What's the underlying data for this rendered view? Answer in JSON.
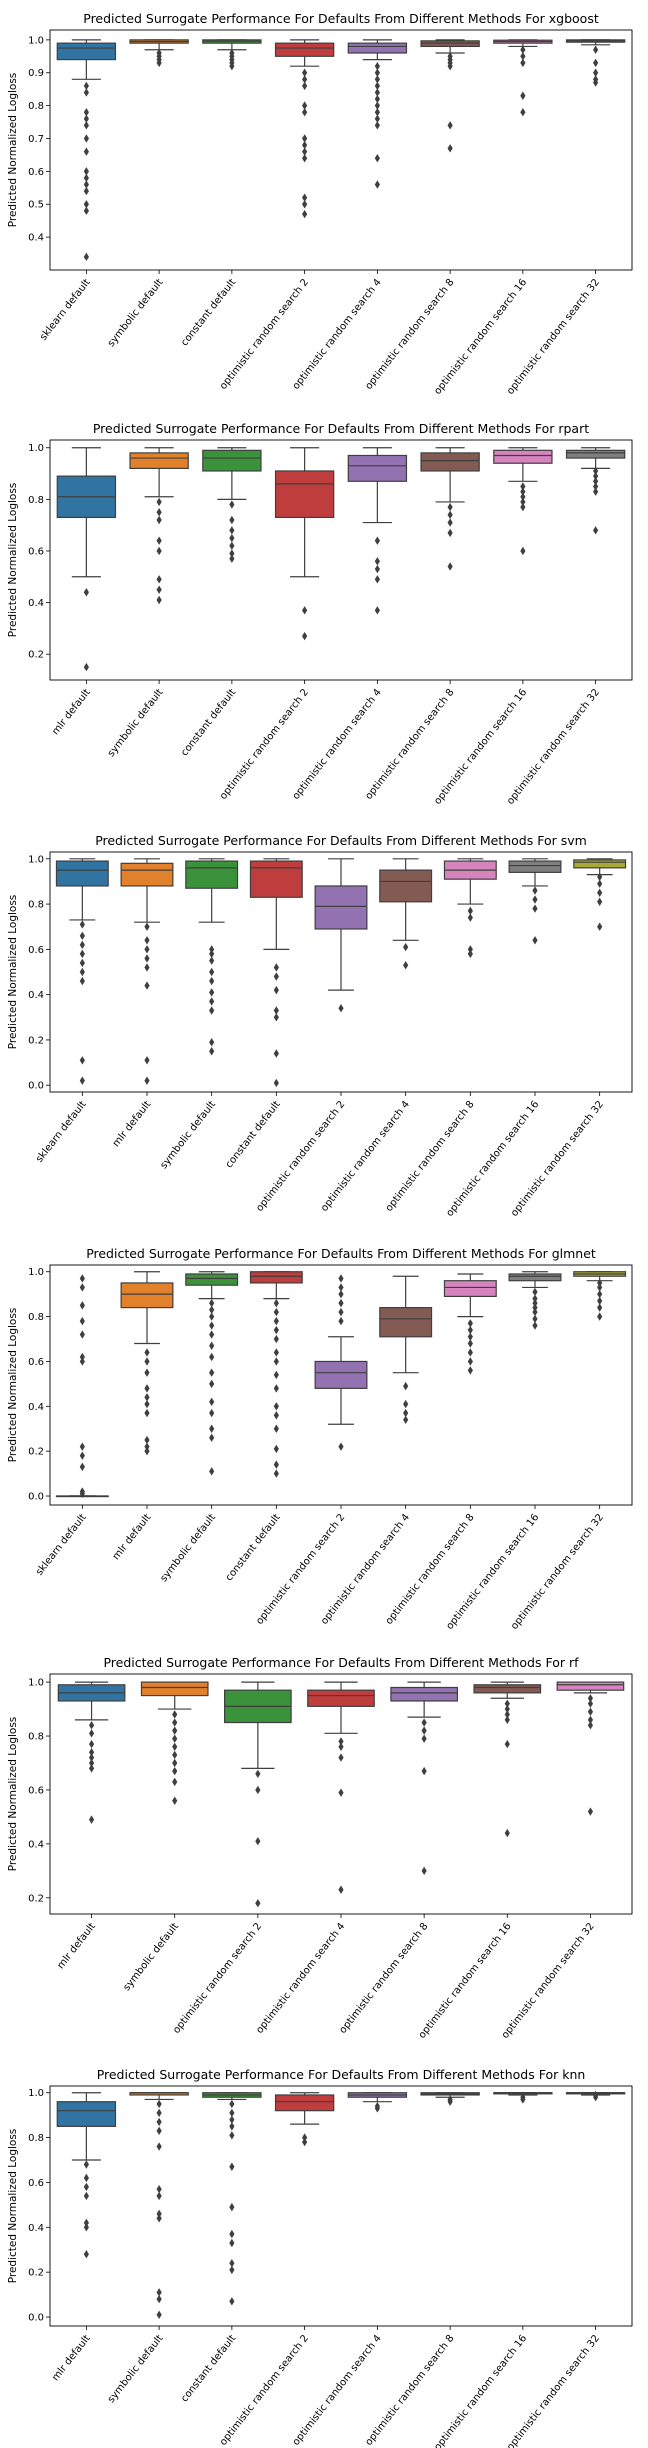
{
  "chart_data": [
    {
      "type": "box",
      "title": "Predicted Surrogate Performance For Defaults From Different Methods For xgboost",
      "ylabel": "Predicted Normalized Logloss",
      "xlabel": "",
      "ylim": [
        0.3,
        1.03
      ],
      "yticks": [
        "0.4",
        "0.5",
        "0.6",
        "0.7",
        "0.8",
        "0.9",
        "1.0"
      ],
      "grid": false,
      "categories": [
        "sklearn default",
        "symbolic default",
        "constant default",
        "optimistic random search 2",
        "optimistic random search 4",
        "optimistic random search 8",
        "optimistic random search 16",
        "optimistic random search 32"
      ],
      "boxes": [
        {
          "whislo": 0.88,
          "q1": 0.94,
          "med": 0.975,
          "q3": 0.99,
          "whishi": 1.0,
          "fliers": [
            0.86,
            0.84,
            0.78,
            0.76,
            0.74,
            0.7,
            0.66,
            0.6,
            0.58,
            0.56,
            0.54,
            0.5,
            0.48,
            0.34
          ]
        },
        {
          "whislo": 0.97,
          "q1": 0.99,
          "med": 0.995,
          "q3": 1.0,
          "whishi": 1.0,
          "fliers": [
            0.96,
            0.95,
            0.94,
            0.93
          ]
        },
        {
          "whislo": 0.97,
          "q1": 0.99,
          "med": 0.996,
          "q3": 1.0,
          "whishi": 1.0,
          "fliers": [
            0.96,
            0.95,
            0.94,
            0.93,
            0.92
          ]
        },
        {
          "whislo": 0.92,
          "q1": 0.95,
          "med": 0.975,
          "q3": 0.99,
          "whishi": 1.0,
          "fliers": [
            0.9,
            0.88,
            0.86,
            0.8,
            0.78,
            0.7,
            0.68,
            0.66,
            0.64,
            0.52,
            0.5,
            0.47
          ]
        },
        {
          "whislo": 0.94,
          "q1": 0.96,
          "med": 0.98,
          "q3": 0.99,
          "whishi": 1.0,
          "fliers": [
            0.92,
            0.9,
            0.88,
            0.86,
            0.84,
            0.82,
            0.8,
            0.78,
            0.76,
            0.74,
            0.64,
            0.56
          ]
        },
        {
          "whislo": 0.96,
          "q1": 0.98,
          "med": 0.99,
          "q3": 0.997,
          "whishi": 1.0,
          "fliers": [
            0.95,
            0.94,
            0.93,
            0.92,
            0.74,
            0.67
          ]
        },
        {
          "whislo": 0.98,
          "q1": 0.99,
          "med": 0.995,
          "q3": 0.999,
          "whishi": 1.0,
          "fliers": [
            0.97,
            0.95,
            0.93,
            0.83,
            0.78
          ]
        },
        {
          "whislo": 0.985,
          "q1": 0.993,
          "med": 0.997,
          "q3": 1.0,
          "whishi": 1.0,
          "fliers": [
            0.97,
            0.93,
            0.9,
            0.88,
            0.87
          ]
        }
      ]
    },
    {
      "type": "box",
      "title": "Predicted Surrogate Performance For Defaults From Different Methods For rpart",
      "ylabel": "Predicted Normalized Logloss",
      "xlabel": "",
      "ylim": [
        0.1,
        1.03
      ],
      "yticks": [
        "0.2",
        "0.4",
        "0.6",
        "0.8",
        "1.0"
      ],
      "grid": false,
      "categories": [
        "mlr default",
        "symbolic default",
        "constant default",
        "optimistic random search 2",
        "optimistic random search 4",
        "optimistic random search 8",
        "optimistic random search 16",
        "optimistic random search 32"
      ],
      "boxes": [
        {
          "whislo": 0.5,
          "q1": 0.73,
          "med": 0.81,
          "q3": 0.89,
          "whishi": 1.0,
          "fliers": [
            0.44,
            0.15
          ]
        },
        {
          "whislo": 0.81,
          "q1": 0.92,
          "med": 0.96,
          "q3": 0.98,
          "whishi": 1.0,
          "fliers": [
            0.79,
            0.75,
            0.72,
            0.64,
            0.6,
            0.49,
            0.45,
            0.41
          ]
        },
        {
          "whislo": 0.8,
          "q1": 0.91,
          "med": 0.96,
          "q3": 0.99,
          "whishi": 1.0,
          "fliers": [
            0.78,
            0.72,
            0.68,
            0.65,
            0.62,
            0.59,
            0.57
          ]
        },
        {
          "whislo": 0.5,
          "q1": 0.73,
          "med": 0.86,
          "q3": 0.91,
          "whishi": 1.0,
          "fliers": [
            0.37,
            0.27
          ]
        },
        {
          "whislo": 0.71,
          "q1": 0.87,
          "med": 0.93,
          "q3": 0.97,
          "whishi": 1.0,
          "fliers": [
            0.64,
            0.56,
            0.53,
            0.49,
            0.37
          ]
        },
        {
          "whislo": 0.79,
          "q1": 0.91,
          "med": 0.95,
          "q3": 0.98,
          "whishi": 1.0,
          "fliers": [
            0.77,
            0.74,
            0.71,
            0.67,
            0.54
          ]
        },
        {
          "whislo": 0.87,
          "q1": 0.94,
          "med": 0.97,
          "q3": 0.99,
          "whishi": 1.0,
          "fliers": [
            0.85,
            0.83,
            0.81,
            0.79,
            0.77,
            0.6
          ]
        },
        {
          "whislo": 0.92,
          "q1": 0.96,
          "med": 0.98,
          "q3": 0.99,
          "whishi": 1.0,
          "fliers": [
            0.91,
            0.89,
            0.87,
            0.85,
            0.83,
            0.68
          ]
        }
      ]
    },
    {
      "type": "box",
      "title": "Predicted Surrogate Performance For Defaults From Different Methods For svm",
      "ylabel": "Predicted Normalized Logloss",
      "xlabel": "",
      "ylim": [
        -0.03,
        1.03
      ],
      "yticks": [
        "0.0",
        "0.2",
        "0.4",
        "0.6",
        "0.8",
        "1.0"
      ],
      "grid": false,
      "categories": [
        "sklearn default",
        "mlr default",
        "symbolic default",
        "constant default",
        "optimistic random search 2",
        "optimistic random search 4",
        "optimistic random search 8",
        "optimistic random search 16",
        "optimistic random search 32"
      ],
      "boxes": [
        {
          "whislo": 0.73,
          "q1": 0.88,
          "med": 0.95,
          "q3": 0.99,
          "whishi": 1.0,
          "fliers": [
            0.71,
            0.66,
            0.62,
            0.58,
            0.54,
            0.5,
            0.46,
            0.11,
            0.02
          ]
        },
        {
          "whislo": 0.72,
          "q1": 0.88,
          "med": 0.95,
          "q3": 0.98,
          "whishi": 1.0,
          "fliers": [
            0.7,
            0.64,
            0.6,
            0.56,
            0.52,
            0.44,
            0.11,
            0.02
          ]
        },
        {
          "whislo": 0.72,
          "q1": 0.87,
          "med": 0.96,
          "q3": 0.99,
          "whishi": 1.0,
          "fliers": [
            0.6,
            0.58,
            0.55,
            0.5,
            0.46,
            0.41,
            0.37,
            0.33,
            0.19,
            0.15
          ]
        },
        {
          "whislo": 0.6,
          "q1": 0.83,
          "med": 0.96,
          "q3": 0.99,
          "whishi": 1.0,
          "fliers": [
            0.52,
            0.48,
            0.42,
            0.33,
            0.3,
            0.14,
            0.01
          ]
        },
        {
          "whislo": 0.42,
          "q1": 0.69,
          "med": 0.79,
          "q3": 0.88,
          "whishi": 1.0,
          "fliers": [
            0.34
          ]
        },
        {
          "whislo": 0.64,
          "q1": 0.81,
          "med": 0.9,
          "q3": 0.95,
          "whishi": 1.0,
          "fliers": [
            0.61,
            0.53
          ]
        },
        {
          "whislo": 0.8,
          "q1": 0.91,
          "med": 0.95,
          "q3": 0.99,
          "whishi": 1.0,
          "fliers": [
            0.77,
            0.74,
            0.6,
            0.58
          ]
        },
        {
          "whislo": 0.88,
          "q1": 0.94,
          "med": 0.97,
          "q3": 0.99,
          "whishi": 1.0,
          "fliers": [
            0.86,
            0.82,
            0.78,
            0.64
          ]
        },
        {
          "whislo": 0.93,
          "q1": 0.96,
          "med": 0.985,
          "q3": 0.995,
          "whishi": 1.0,
          "fliers": [
            0.92,
            0.89,
            0.85,
            0.81,
            0.7
          ]
        }
      ]
    },
    {
      "type": "box",
      "title": "Predicted Surrogate Performance For Defaults From Different Methods For glmnet",
      "ylabel": "Predicted Normalized Logloss",
      "xlabel": "",
      "ylim": [
        -0.04,
        1.03
      ],
      "yticks": [
        "0.0",
        "0.2",
        "0.4",
        "0.6",
        "0.8",
        "1.0"
      ],
      "grid": false,
      "categories": [
        "sklearn default",
        "mlr default",
        "symbolic default",
        "constant default",
        "optimistic random search 2",
        "optimistic random search 4",
        "optimistic random search 8",
        "optimistic random search 16",
        "optimistic random search 32"
      ],
      "boxes": [
        {
          "whislo": 0.0,
          "q1": 0.0,
          "med": 0.0,
          "q3": 0.0,
          "whishi": 0.0,
          "fliers": [
            0.97,
            0.93,
            0.85,
            0.78,
            0.72,
            0.62,
            0.6,
            0.22,
            0.18,
            0.13,
            0.02,
            0.01
          ]
        },
        {
          "whislo": 0.68,
          "q1": 0.84,
          "med": 0.9,
          "q3": 0.95,
          "whishi": 1.0,
          "fliers": [
            0.64,
            0.6,
            0.55,
            0.48,
            0.44,
            0.41,
            0.37,
            0.25,
            0.22,
            0.2
          ]
        },
        {
          "whislo": 0.88,
          "q1": 0.94,
          "med": 0.97,
          "q3": 0.99,
          "whishi": 1.0,
          "fliers": [
            0.86,
            0.83,
            0.8,
            0.76,
            0.72,
            0.67,
            0.62,
            0.55,
            0.5,
            0.42,
            0.37,
            0.3,
            0.26,
            0.11
          ]
        },
        {
          "whislo": 0.88,
          "q1": 0.95,
          "med": 0.98,
          "q3": 1.0,
          "whishi": 1.0,
          "fliers": [
            0.86,
            0.82,
            0.78,
            0.74,
            0.7,
            0.64,
            0.6,
            0.54,
            0.48,
            0.4,
            0.36,
            0.3,
            0.21,
            0.14,
            0.1
          ]
        },
        {
          "whislo": 0.32,
          "q1": 0.48,
          "med": 0.55,
          "q3": 0.6,
          "whishi": 0.71,
          "fliers": [
            0.97,
            0.93,
            0.9,
            0.86,
            0.82,
            0.78,
            0.22
          ]
        },
        {
          "whislo": 0.55,
          "q1": 0.71,
          "med": 0.79,
          "q3": 0.84,
          "whishi": 0.98,
          "fliers": [
            0.49,
            0.41,
            0.37,
            0.34
          ]
        },
        {
          "whislo": 0.8,
          "q1": 0.89,
          "med": 0.93,
          "q3": 0.96,
          "whishi": 0.99,
          "fliers": [
            0.77,
            0.74,
            0.71,
            0.68,
            0.64,
            0.6,
            0.56
          ]
        },
        {
          "whislo": 0.93,
          "q1": 0.96,
          "med": 0.98,
          "q3": 0.99,
          "whishi": 1.0,
          "fliers": [
            0.91,
            0.88,
            0.86,
            0.84,
            0.82,
            0.79,
            0.76
          ]
        },
        {
          "whislo": 0.96,
          "q1": 0.98,
          "med": 0.99,
          "q3": 1.0,
          "whishi": 1.0,
          "fliers": [
            0.95,
            0.93,
            0.9,
            0.87,
            0.84,
            0.8
          ]
        }
      ]
    },
    {
      "type": "box",
      "title": "Predicted Surrogate Performance For Defaults From Different Methods For rf",
      "ylabel": "Predicted Normalized Logloss",
      "xlabel": "",
      "ylim": [
        0.14,
        1.03
      ],
      "yticks": [
        "0.2",
        "0.4",
        "0.6",
        "0.8",
        "1.0"
      ],
      "grid": false,
      "categories": [
        "mlr default",
        "symbolic default",
        "optimistic random search 2",
        "optimistic random search 4",
        "optimistic random search 8",
        "optimistic random search 16",
        "optimistic random search 32"
      ],
      "boxes": [
        {
          "whislo": 0.86,
          "q1": 0.93,
          "med": 0.96,
          "q3": 0.99,
          "whishi": 1.0,
          "fliers": [
            0.84,
            0.81,
            0.77,
            0.74,
            0.72,
            0.7,
            0.68,
            0.49
          ]
        },
        {
          "whislo": 0.9,
          "q1": 0.95,
          "med": 0.98,
          "q3": 1.0,
          "whishi": 1.0,
          "fliers": [
            0.88,
            0.85,
            0.82,
            0.79,
            0.76,
            0.73,
            0.7,
            0.67,
            0.63,
            0.56
          ]
        },
        {
          "whislo": 0.68,
          "q1": 0.85,
          "med": 0.91,
          "q3": 0.97,
          "whishi": 1.0,
          "fliers": [
            0.66,
            0.6,
            0.41,
            0.18
          ]
        },
        {
          "whislo": 0.81,
          "q1": 0.91,
          "med": 0.95,
          "q3": 0.97,
          "whishi": 1.0,
          "fliers": [
            0.78,
            0.76,
            0.72,
            0.59,
            0.23
          ]
        },
        {
          "whislo": 0.87,
          "q1": 0.93,
          "med": 0.96,
          "q3": 0.98,
          "whishi": 1.0,
          "fliers": [
            0.85,
            0.82,
            0.79,
            0.67,
            0.3
          ]
        },
        {
          "whislo": 0.94,
          "q1": 0.96,
          "med": 0.98,
          "q3": 0.99,
          "whishi": 1.0,
          "fliers": [
            0.92,
            0.9,
            0.88,
            0.86,
            0.77,
            0.44
          ]
        },
        {
          "whislo": 0.96,
          "q1": 0.97,
          "med": 0.99,
          "q3": 1.0,
          "whishi": 1.0,
          "fliers": [
            0.94,
            0.92,
            0.89,
            0.86,
            0.84,
            0.52
          ]
        }
      ]
    },
    {
      "type": "box",
      "title": "Predicted Surrogate Performance For Defaults From Different Methods For knn",
      "ylabel": "Predicted Normalized Logloss",
      "xlabel": "",
      "ylim": [
        -0.04,
        1.03
      ],
      "yticks": [
        "0.0",
        "0.2",
        "0.4",
        "0.6",
        "0.8",
        "1.0"
      ],
      "grid": false,
      "categories": [
        "mlr default",
        "symbolic default",
        "constant default",
        "optimistic random search 2",
        "optimistic random search 4",
        "optimistic random search 8",
        "optimistic random search 16",
        "optimistic random search 32"
      ],
      "boxes": [
        {
          "whislo": 0.7,
          "q1": 0.85,
          "med": 0.92,
          "q3": 0.96,
          "whishi": 1.0,
          "fliers": [
            0.68,
            0.62,
            0.58,
            0.54,
            0.42,
            0.4,
            0.28
          ]
        },
        {
          "whislo": 0.97,
          "q1": 0.99,
          "med": 1.0,
          "q3": 1.0,
          "whishi": 1.0,
          "fliers": [
            0.95,
            0.91,
            0.87,
            0.83,
            0.76,
            0.57,
            0.54,
            0.46,
            0.44,
            0.11,
            0.08,
            0.01
          ]
        },
        {
          "whislo": 0.97,
          "q1": 0.98,
          "med": 0.99,
          "q3": 1.0,
          "whishi": 1.0,
          "fliers": [
            0.95,
            0.91,
            0.88,
            0.85,
            0.81,
            0.67,
            0.49,
            0.37,
            0.33,
            0.24,
            0.21,
            0.07
          ]
        },
        {
          "whislo": 0.86,
          "q1": 0.92,
          "med": 0.96,
          "q3": 0.99,
          "whishi": 1.0,
          "fliers": [
            0.8,
            0.78
          ]
        },
        {
          "whislo": 0.96,
          "q1": 0.98,
          "med": 0.99,
          "q3": 1.0,
          "whishi": 1.0,
          "fliers": [
            0.94,
            0.93
          ]
        },
        {
          "whislo": 0.98,
          "q1": 0.99,
          "med": 0.995,
          "q3": 1.0,
          "whishi": 1.0,
          "fliers": [
            0.97,
            0.96
          ]
        },
        {
          "whislo": 0.99,
          "q1": 0.995,
          "med": 1.0,
          "q3": 1.0,
          "whishi": 1.0,
          "fliers": [
            0.98,
            0.97
          ]
        },
        {
          "whislo": 0.99,
          "q1": 0.995,
          "med": 1.0,
          "q3": 1.0,
          "whishi": 1.0,
          "fliers": [
            0.98,
            0.99
          ]
        }
      ]
    }
  ],
  "category_colors": {
    "sklearn default": "#3274a1",
    "mlr default": "#3274a1",
    "symbolic default": "#e1812c",
    "constant default": "#3a923a",
    "optimistic random search 2": "#c03d3e",
    "optimistic random search 4": "#9372b2",
    "optimistic random search 8": "#845b53",
    "optimistic random search 16": "#d684bd",
    "optimistic random search 32": "#7f7f7f",
    "optimistic random search 32 (svm, glmnet)": "#a9aa35"
  },
  "colors": {
    "svm": [
      "#3274a1",
      "#e1812c",
      "#3a923a",
      "#c03d3e",
      "#9372b2",
      "#845b53",
      "#d684bd",
      "#7f7f7f",
      "#a9aa35"
    ],
    "glmnet": [
      "#3274a1",
      "#e1812c",
      "#3a923a",
      "#c03d3e",
      "#9372b2",
      "#845b53",
      "#d684bd",
      "#7f7f7f",
      "#a9aa35"
    ],
    "rf": [
      "#3274a1",
      "#e1812c",
      "#3a923a",
      "#c03d3e",
      "#9372b2",
      "#845b53",
      "#d684bd"
    ],
    "default8": [
      "#3274a1",
      "#e1812c",
      "#3a923a",
      "#c03d3e",
      "#9372b2",
      "#845b53",
      "#d684bd",
      "#7f7f7f"
    ]
  }
}
